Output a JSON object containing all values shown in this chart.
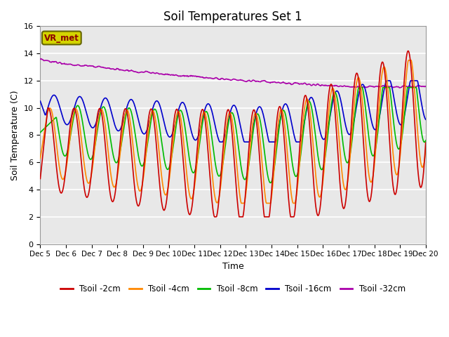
{
  "title": "Soil Temperatures Set 1",
  "xlabel": "Time",
  "ylabel": "Soil Temperature (C)",
  "ylim": [
    0,
    16
  ],
  "yticks": [
    0,
    2,
    4,
    6,
    8,
    10,
    12,
    14,
    16
  ],
  "x_labels": [
    "Dec 5",
    "Dec 6",
    "Dec 7",
    "Dec 8",
    "Dec 9",
    "Dec 10",
    "Dec 11",
    "Dec 12",
    "Dec 13",
    "Dec 14",
    "Dec 15",
    "Dec 16",
    "Dec 17",
    "Dec 18",
    "Dec 19",
    "Dec 20"
  ],
  "colors": {
    "tsoil_2cm": "#cc0000",
    "tsoil_4cm": "#ff8800",
    "tsoil_8cm": "#00bb00",
    "tsoil_16cm": "#0000cc",
    "tsoil_32cm": "#aa00aa"
  },
  "legend_labels": [
    "Tsoil -2cm",
    "Tsoil -4cm",
    "Tsoil -8cm",
    "Tsoil -16cm",
    "Tsoil -32cm"
  ],
  "vr_met_label": "VR_met",
  "bg_color": "#e8e8e8",
  "line_width": 1.2
}
